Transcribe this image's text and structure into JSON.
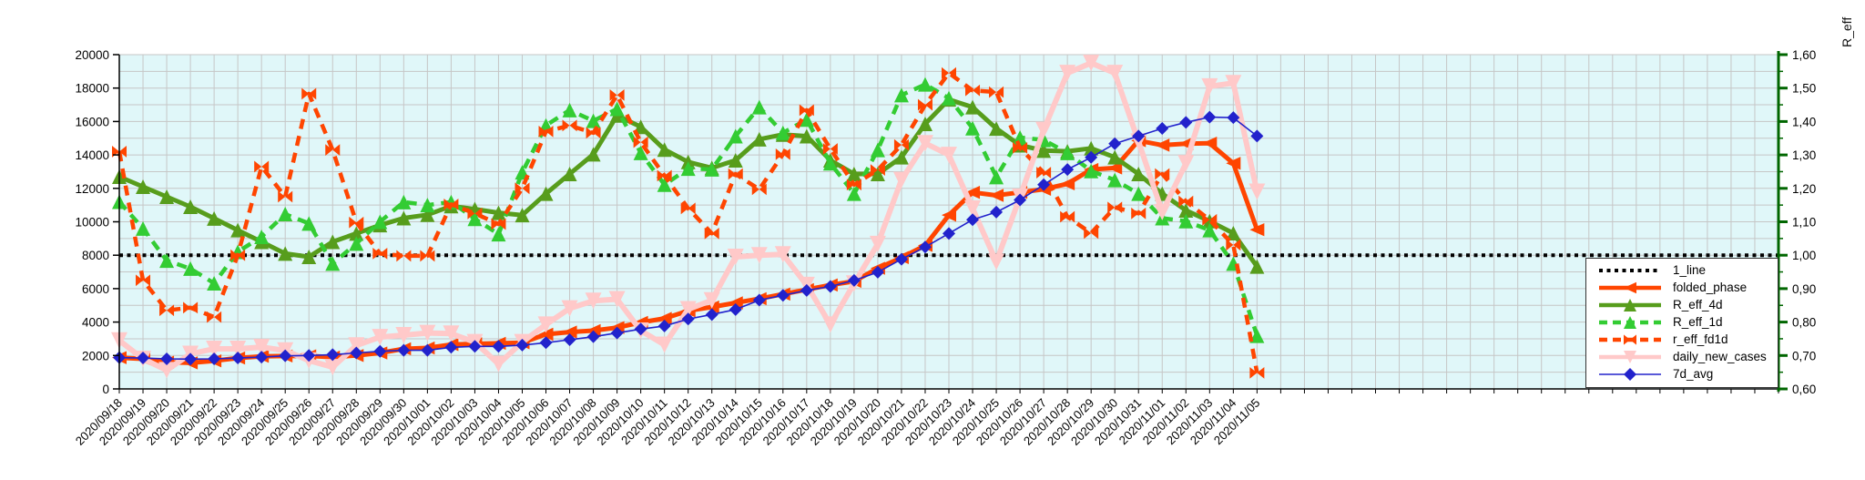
{
  "chart_data": {
    "type": "line",
    "title": "",
    "right_axis_title": "R_eff",
    "x_labels": [
      "2020/09/18",
      "2020/09/19",
      "2020/09/20",
      "2020/09/21",
      "2020/09/22",
      "2020/09/23",
      "2020/09/24",
      "2020/09/25",
      "2020/09/26",
      "2020/09/27",
      "2020/09/28",
      "2020/09/29",
      "2020/09/30",
      "2020/10/01",
      "2020/10/02",
      "2020/10/03",
      "2020/10/04",
      "2020/10/05",
      "2020/10/06",
      "2020/10/07",
      "2020/10/08",
      "2020/10/09",
      "2020/10/10",
      "2020/10/11",
      "2020/10/12",
      "2020/10/13",
      "2020/10/14",
      "2020/10/15",
      "2020/10/16",
      "2020/10/17",
      "2020/10/18",
      "2020/10/19",
      "2020/10/20",
      "2020/10/21",
      "2020/10/22",
      "2020/10/23",
      "2020/10/24",
      "2020/10/25",
      "2020/10/26",
      "2020/10/27",
      "2020/10/28",
      "2020/10/29",
      "2020/10/30",
      "2020/10/31",
      "2020/11/01",
      "2020/11/02",
      "2020/11/03",
      "2020/11/04",
      "2020/11/05"
    ],
    "left_axis": {
      "min": 0,
      "max": 20000,
      "label_step": 2000,
      "grid_step": 1000
    },
    "right_axis": {
      "min": 0.6,
      "max": 1.6,
      "label_step": 0.1,
      "title": "R_eff",
      "decimal_separator": ","
    },
    "grid": {
      "vertical_slots": 70,
      "on": true
    },
    "legend_position": "inside-bottom-right",
    "series": [
      {
        "name": "1_line",
        "kind": "hline",
        "axis": "left",
        "value": 8000,
        "color": "#000000",
        "width": 4,
        "dash": "4 4.5",
        "marker": "none"
      },
      {
        "name": "folded_phase",
        "kind": "line",
        "axis": "left",
        "color": "#FF4500",
        "width": 5,
        "dash": "",
        "marker": "left-arrow",
        "marker_size": 8,
        "values": [
          1870,
          1800,
          1600,
          1560,
          1680,
          1850,
          1950,
          1970,
          1980,
          1900,
          2000,
          2150,
          2400,
          2450,
          2655,
          2700,
          2730,
          2765,
          3270,
          3400,
          3490,
          3670,
          3980,
          4220,
          4675,
          4900,
          5150,
          5400,
          5675,
          5945,
          6220,
          6435,
          7220,
          7855,
          8585,
          10400,
          11760,
          11580,
          11760,
          11945,
          12270,
          13130,
          13220,
          14855,
          14585,
          14675,
          14700,
          13500,
          9525
        ]
      },
      {
        "name": "R_eff_4d",
        "kind": "line",
        "axis": "right",
        "color": "#579D1C",
        "width": 5,
        "dash": "",
        "marker": "triangle-up",
        "marker_size": 8,
        "values": [
          1.235,
          1.205,
          1.175,
          1.145,
          1.11,
          1.075,
          1.04,
          1.005,
          0.995,
          1.04,
          1.065,
          1.09,
          1.111,
          1.121,
          1.147,
          1.138,
          1.127,
          1.12,
          1.184,
          1.243,
          1.302,
          1.418,
          1.384,
          1.316,
          1.279,
          1.261,
          1.284,
          1.347,
          1.361,
          1.356,
          1.284,
          1.243,
          1.243,
          1.293,
          1.393,
          1.466,
          1.443,
          1.379,
          1.329,
          1.313,
          1.311,
          1.32,
          1.293,
          1.243,
          1.184,
          1.134,
          1.102,
          1.066,
          0.966
        ]
      },
      {
        "name": "R_eff_1d",
        "kind": "line",
        "axis": "right",
        "color": "#33CC33",
        "width": 4.5,
        "dash": "11 8",
        "marker": "triangle-up",
        "marker_size": 8,
        "values": [
          1.16,
          1.08,
          0.984,
          0.96,
          0.916,
          1.01,
          1.055,
          1.123,
          1.095,
          0.975,
          1.035,
          1.1,
          1.159,
          1.15,
          1.159,
          1.109,
          1.063,
          1.248,
          1.388,
          1.434,
          1.402,
          1.438,
          1.306,
          1.211,
          1.259,
          1.257,
          1.356,
          1.443,
          1.366,
          1.406,
          1.275,
          1.184,
          1.315,
          1.479,
          1.511,
          1.47,
          1.38,
          1.234,
          1.352,
          1.345,
          1.306,
          1.252,
          1.225,
          1.184,
          1.111,
          1.102,
          1.075,
          0.975,
          0.759
        ]
      },
      {
        "name": "r_eff_fd1d",
        "kind": "line",
        "axis": "right",
        "color": "#FF4500",
        "width": 4.5,
        "dash": "11 8",
        "marker": "bowtie",
        "marker_size": 8,
        "values": [
          1.31,
          0.925,
          0.835,
          0.843,
          0.815,
          1.0,
          1.265,
          1.175,
          1.483,
          1.315,
          1.098,
          1.005,
          0.998,
          0.998,
          1.152,
          1.125,
          1.093,
          1.2,
          1.37,
          1.388,
          1.366,
          1.479,
          1.338,
          1.238,
          1.14,
          1.065,
          1.243,
          1.197,
          1.302,
          1.434,
          1.318,
          1.211,
          1.255,
          1.33,
          1.45,
          1.545,
          1.493,
          1.488,
          1.321,
          1.247,
          1.115,
          1.066,
          1.143,
          1.125,
          1.243,
          1.161,
          1.106,
          1.031,
          0.648
        ]
      },
      {
        "name": "daily_new_cases",
        "kind": "line",
        "axis": "left",
        "color": "#FFC9C9",
        "width": 6,
        "dash": "",
        "marker": "triangle-down",
        "marker_size": 9,
        "values": [
          2900,
          1800,
          1125,
          2100,
          2400,
          2400,
          2500,
          2300,
          1700,
          1300,
          2600,
          3100,
          3215,
          3345,
          3310,
          2800,
          1490,
          2800,
          3850,
          4815,
          5270,
          5370,
          3490,
          2640,
          4765,
          5300,
          7900,
          8000,
          8050,
          6220,
          3850,
          6310,
          8670,
          12500,
          14700,
          14000,
          10800,
          7600,
          11500,
          15500,
          18900,
          19500,
          18900,
          14800,
          10580,
          13500,
          18100,
          18300,
          11800
        ]
      },
      {
        "name": "7d_avg",
        "kind": "line",
        "axis": "left",
        "color": "#2222CC",
        "width": 1.6,
        "dash": "",
        "marker": "diamond",
        "marker_size": 7,
        "values": [
          1870,
          1850,
          1800,
          1780,
          1800,
          1850,
          1900,
          1980,
          2000,
          2050,
          2150,
          2250,
          2310,
          2310,
          2490,
          2545,
          2545,
          2620,
          2765,
          2945,
          3125,
          3345,
          3580,
          3765,
          4180,
          4450,
          4750,
          5310,
          5600,
          5890,
          6130,
          6490,
          6980,
          7760,
          8490,
          9300,
          10125,
          10580,
          11310,
          12220,
          13130,
          13855,
          14675,
          15130,
          15585,
          15950,
          16260,
          16230,
          15130
        ]
      }
    ],
    "legend_entries": [
      "1_line",
      "folded_phase",
      "R_eff_4d",
      "R_eff_1d",
      "r_eff_fd1d",
      "daily_new_cases",
      "7d_avg"
    ],
    "colors": {
      "plot_background": "#E0F7F9",
      "grid": "#C6C6C6",
      "left_axis": "#000000",
      "right_axis": "#006600",
      "tick_text": "#000000"
    }
  }
}
